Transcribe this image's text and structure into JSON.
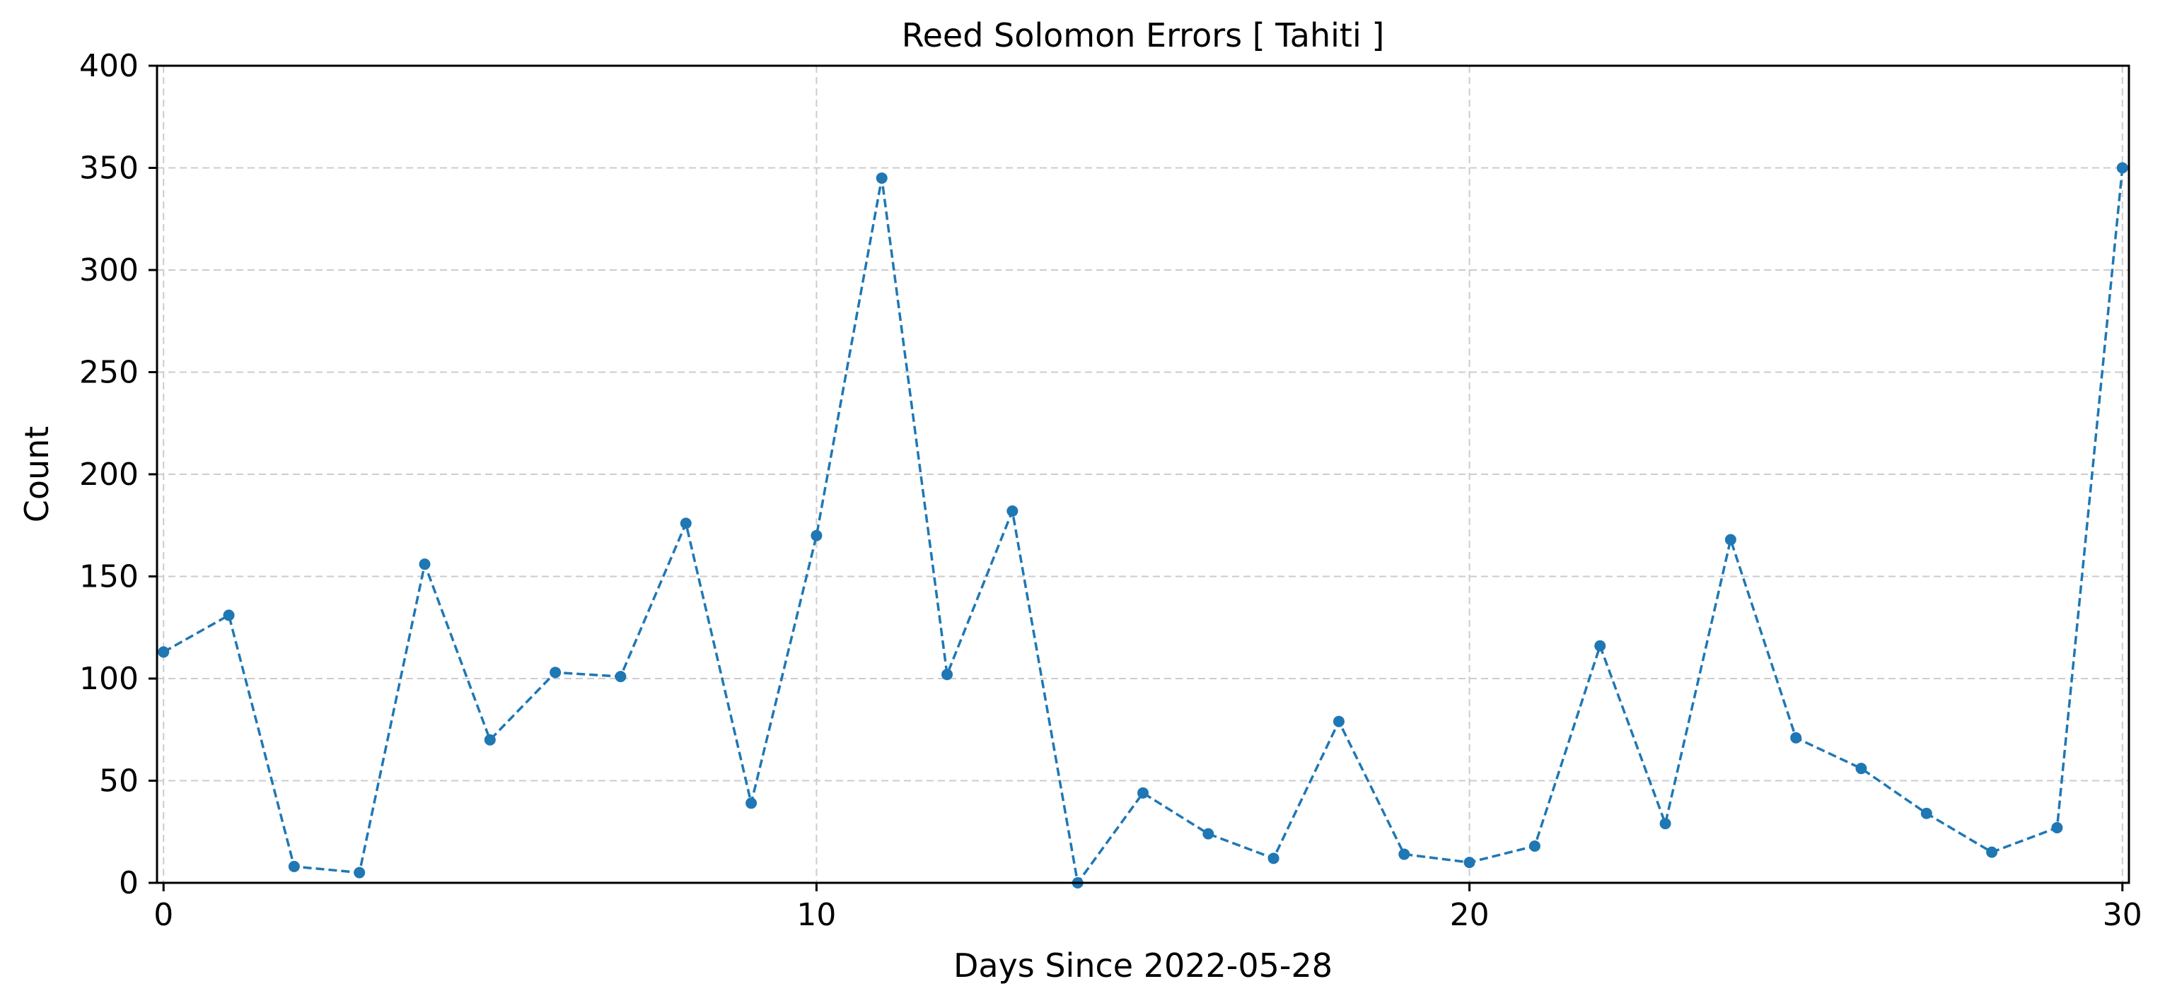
{
  "chart_data": {
    "type": "line",
    "title": "Reed Solomon Errors [ Tahiti ]",
    "xlabel": "Days Since 2022-05-28",
    "ylabel": "Count",
    "xlim": [
      -0.1,
      30.1
    ],
    "ylim": [
      0,
      400
    ],
    "xticks": [
      0,
      10,
      20,
      30
    ],
    "yticks": [
      0,
      50,
      100,
      150,
      200,
      250,
      300,
      350,
      400
    ],
    "grid": true,
    "series": [
      {
        "color": "#1f77b4",
        "x": [
          0,
          1,
          2,
          3,
          4,
          5,
          6,
          7,
          8,
          9,
          10,
          11,
          12,
          13,
          14,
          15,
          16,
          17,
          18,
          19,
          20,
          21,
          22,
          23,
          24,
          25,
          26,
          27,
          28,
          29,
          30
        ],
        "values": [
          113,
          131,
          8,
          5,
          156,
          70,
          103,
          101,
          176,
          39,
          170,
          345,
          102,
          182,
          0,
          44,
          24,
          12,
          79,
          14,
          10,
          18,
          116,
          29,
          168,
          71,
          56,
          34,
          15,
          27,
          350
        ]
      }
    ]
  }
}
